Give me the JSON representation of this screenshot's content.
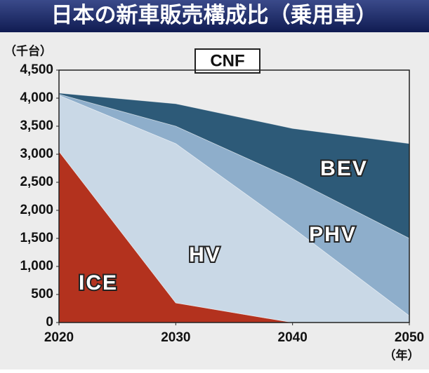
{
  "chart_data": {
    "type": "stacked-area",
    "title": "日本の新車販売構成比（乗用車）",
    "subtitle": "CNF",
    "y_label": "（千台）",
    "x_label": "（年）",
    "x": [
      2020,
      2030,
      2040,
      2050
    ],
    "xlim": [
      2020,
      2050
    ],
    "xticks": [
      2020,
      2030,
      2040,
      2050
    ],
    "ylim": [
      0,
      4500
    ],
    "yticks": [
      0,
      500,
      {
        "value": 1000,
        "label": "1,000"
      },
      {
        "value": 1500,
        "label": "1,500"
      },
      {
        "value": 2000,
        "label": "2,000"
      },
      {
        "value": 2500,
        "label": "2,500"
      },
      {
        "value": 3000,
        "label": "3,000"
      },
      {
        "value": 3500,
        "label": "3,500"
      },
      {
        "value": 4000,
        "label": "4,000"
      },
      {
        "value": 4500,
        "label": "4,500"
      }
    ],
    "grid": false,
    "series": [
      {
        "name": "ICE",
        "color": "#b3321e",
        "values": [
          3050,
          350,
          0,
          0
        ]
      },
      {
        "name": "HV",
        "color": "#c9d8e6",
        "values": [
          1000,
          2840,
          1690,
          120
        ]
      },
      {
        "name": "PHV",
        "color": "#8eaecb",
        "values": [
          20,
          310,
          870,
          1380
        ]
      },
      {
        "name": "BEV",
        "color": "#2d5a78",
        "values": [
          20,
          400,
          900,
          1690
        ]
      }
    ]
  }
}
